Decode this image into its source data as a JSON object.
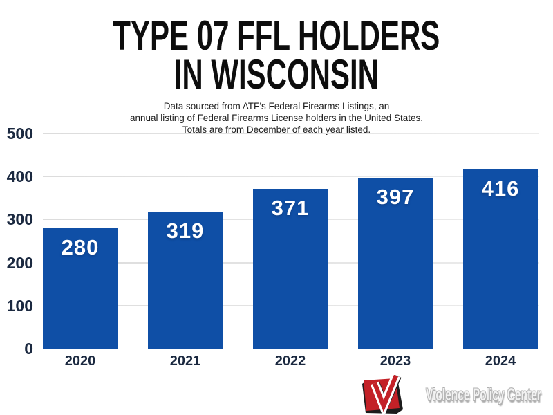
{
  "header": {
    "title_line1": "TYPE 07 FFL HOLDERS",
    "title_line2": "IN WISCONSIN",
    "subtitle_lines": [
      "Data sourced from ATF’s Federal Firearms Listings, an",
      "annual listing of Federal Firearms License holders in the United States.",
      "Totals are from December of each year listed."
    ]
  },
  "chart_data": {
    "type": "bar",
    "title": "Type 07 FFL Holders in Wisconsin",
    "categories": [
      "2020",
      "2021",
      "2022",
      "2023",
      "2024"
    ],
    "values": [
      280,
      319,
      371,
      397,
      416
    ],
    "xlabel": "",
    "ylabel": "",
    "ylim": [
      0,
      500
    ],
    "yticks": [
      0,
      100,
      200,
      300,
      400,
      500
    ],
    "grid": true,
    "legend": "none",
    "bar_color": "#0f4fa6",
    "value_label_color": "#ffffff",
    "axis_label_color": "#1b2940",
    "gridline_color": "#dcdcdc"
  },
  "footer": {
    "logo_text": "Violence Policy Center",
    "logo_mark": "vpc-red-v-logo",
    "logo_red": "#c32127",
    "logo_dark": "#1c1c1c"
  }
}
